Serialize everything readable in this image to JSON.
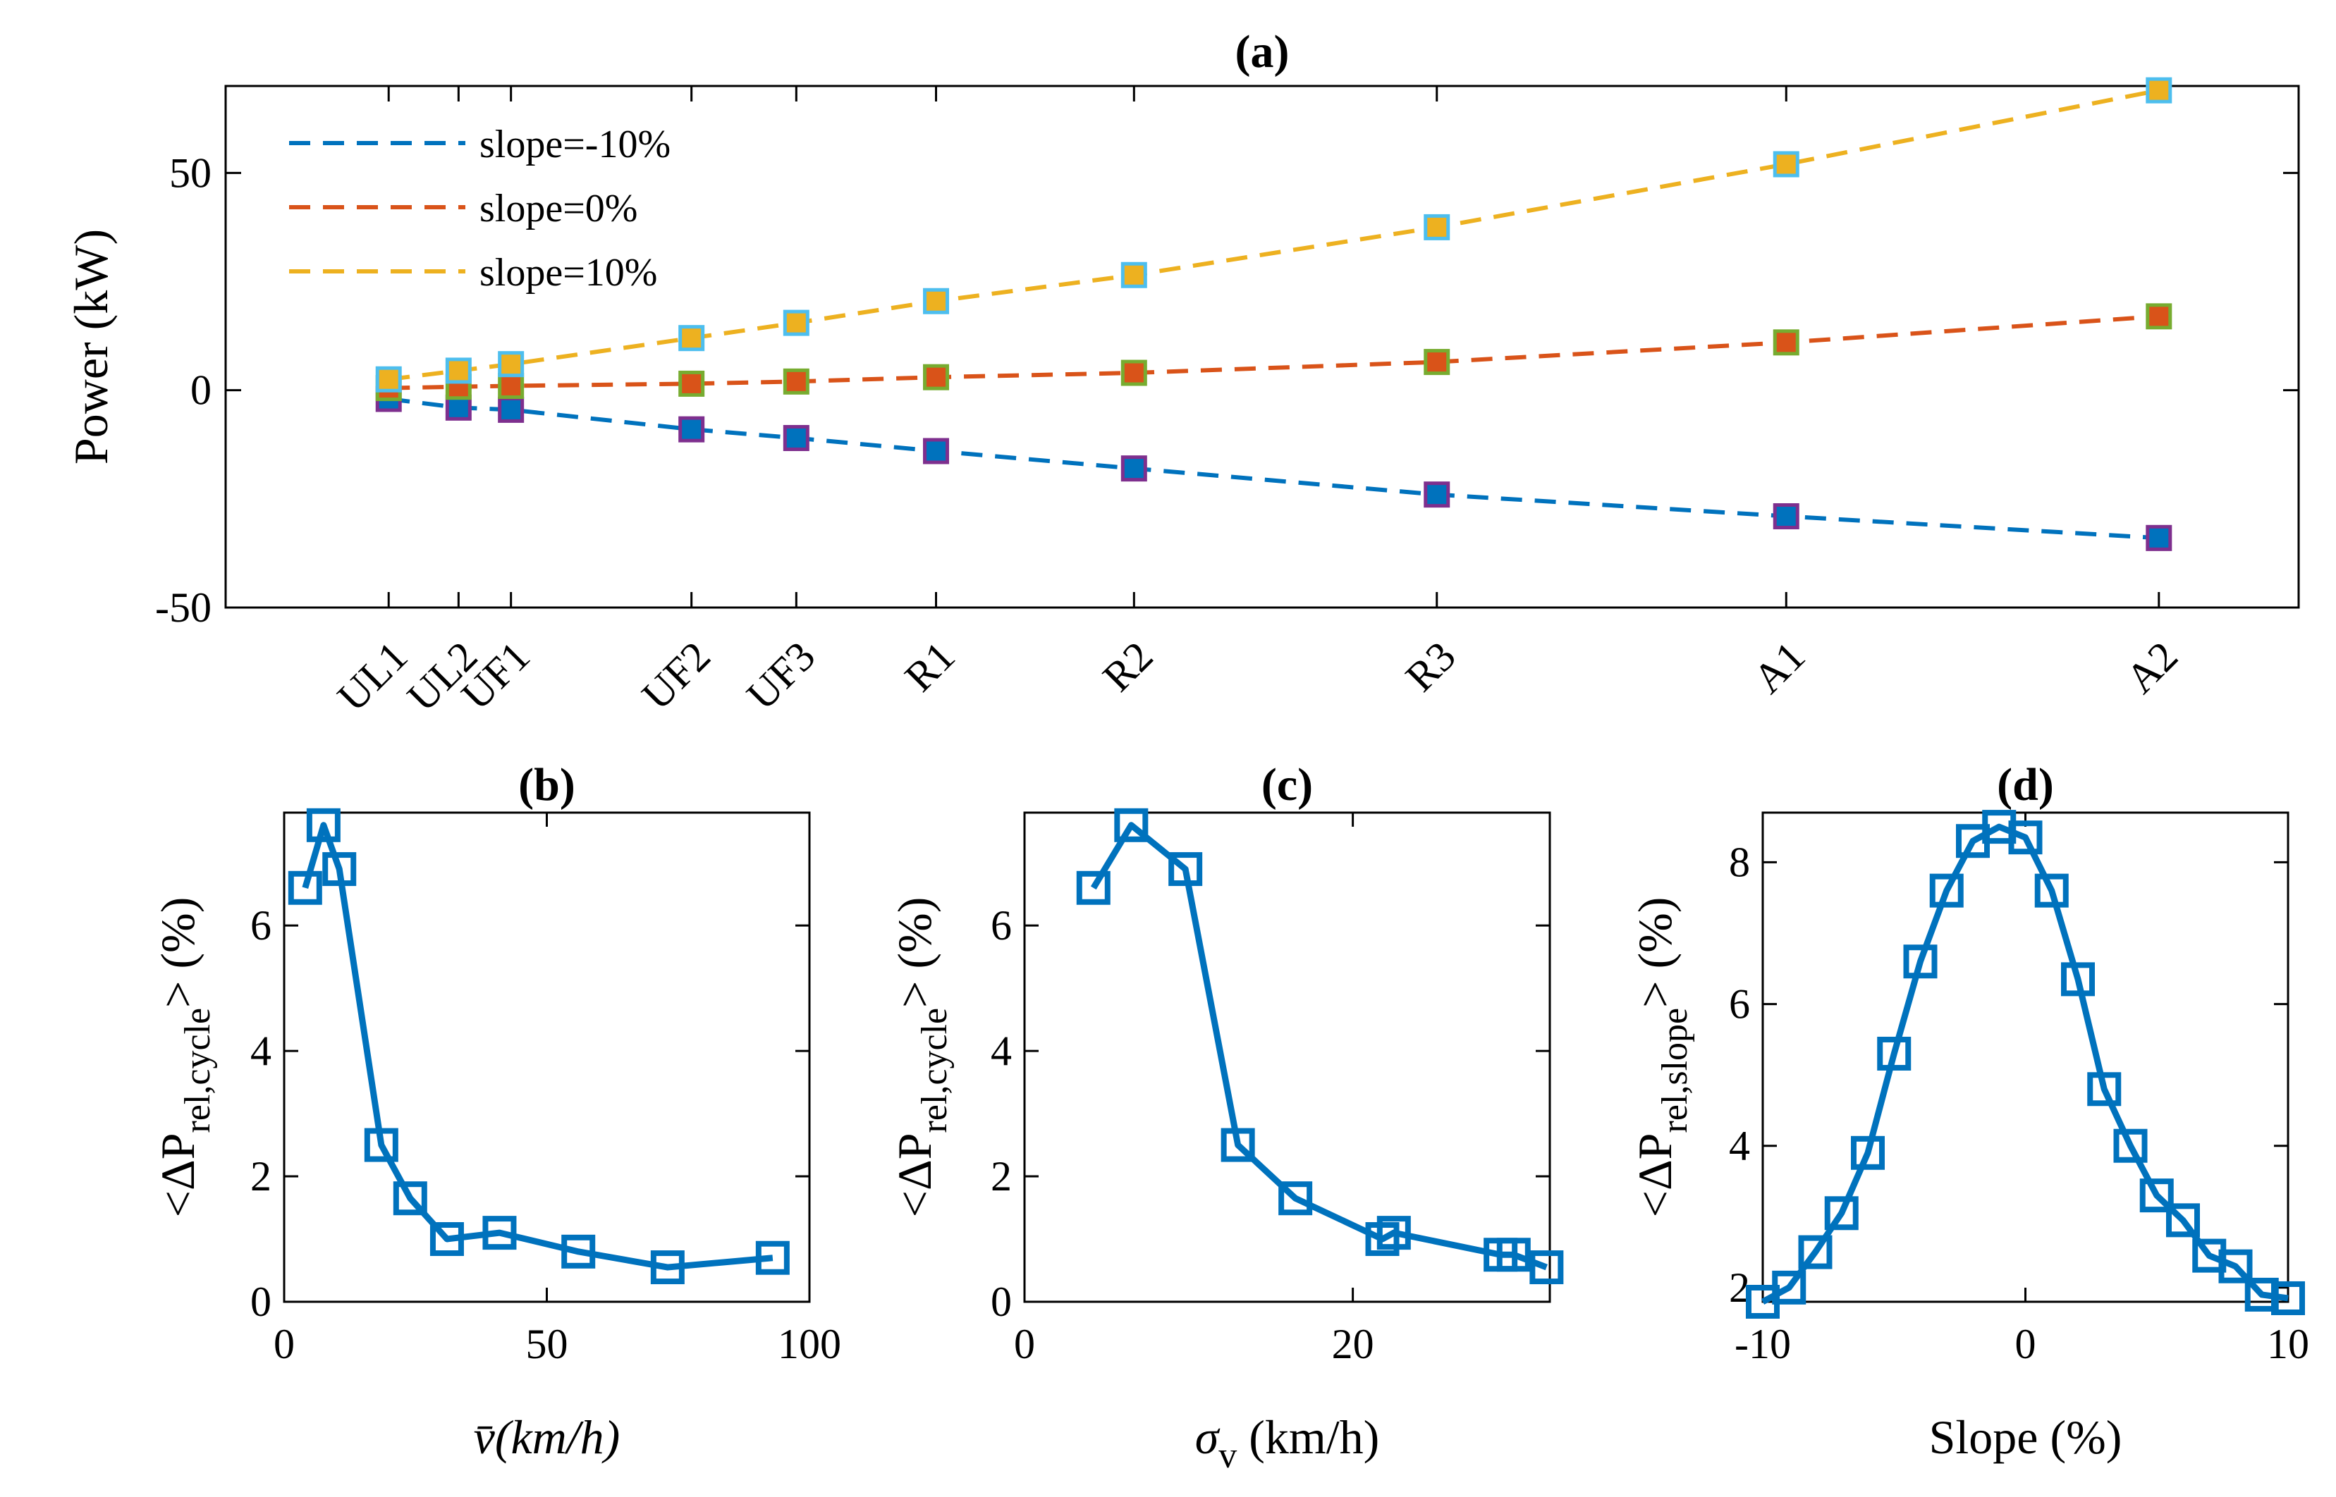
{
  "colors": {
    "blue": "#0072BD",
    "orange": "#D95319",
    "yellow": "#EDB120",
    "purple": "#7E2F8E",
    "green": "#77AC30",
    "cyan": "#4DBEEE"
  },
  "chart_data": [
    {
      "id": "a",
      "type": "line",
      "title": "(a)",
      "xlabel": "",
      "ylabel": "Power (kW)",
      "categories": [
        "UL1",
        "UL2",
        "UF1",
        "UF2",
        "UF3",
        "R1",
        "R2",
        "R3",
        "A1",
        "A2"
      ],
      "x": [
        14,
        20,
        24.5,
        40,
        49,
        61,
        78,
        104,
        134,
        166
      ],
      "xlim": [
        0,
        178
      ],
      "ylim": [
        -50,
        70
      ],
      "yticks": [
        -50,
        0,
        50
      ],
      "ytick_labels": [
        "-50",
        "0",
        "50"
      ],
      "grid": false,
      "legend_position": "top-left",
      "series": [
        {
          "name": "slope=-10%",
          "color": "#0072BD",
          "marker_edge": "#7E2F8E",
          "values": [
            -2,
            -4,
            -4.5,
            -9,
            -11,
            -14,
            -18,
            -24,
            -29,
            -34
          ]
        },
        {
          "name": "slope=0%",
          "color": "#D95319",
          "marker_edge": "#77AC30",
          "values": [
            0.5,
            0.8,
            1,
            1.5,
            2,
            3,
            4,
            6.5,
            11,
            17
          ]
        },
        {
          "name": "slope=10%",
          "color": "#EDB120",
          "marker_edge": "#4DBEEE",
          "values": [
            2.5,
            4.5,
            6,
            12,
            15.5,
            20.5,
            26.5,
            37.5,
            52,
            69
          ]
        }
      ]
    },
    {
      "id": "b",
      "type": "line",
      "title": "(b)",
      "xlabel": "v̄(km/h)",
      "ylabel": "<ΔP_rel,cycle> (%)",
      "ylabel_main": "<ΔP",
      "ylabel_sub": "rel,cycle",
      "ylabel_tail": "> (%)",
      "xlim": [
        0,
        100
      ],
      "ylim": [
        0,
        7.8
      ],
      "xticks": [
        0,
        50,
        100
      ],
      "xtick_labels": [
        "0",
        "50",
        "100"
      ],
      "yticks": [
        0,
        2,
        4,
        6
      ],
      "ytick_labels": [
        "0",
        "2",
        "4",
        "6"
      ],
      "x": [
        4,
        7.5,
        10.5,
        18.5,
        24,
        31,
        41,
        56,
        73,
        93
      ],
      "values": [
        6.6,
        7.6,
        6.9,
        2.5,
        1.65,
        1.0,
        1.1,
        0.8,
        0.55,
        0.7
      ]
    },
    {
      "id": "c",
      "type": "line",
      "title": "(c)",
      "xlabel": "σ_v (km/h)",
      "xlabel_main": "σ",
      "xlabel_sub": "v",
      "xlabel_tail": " (km/h)",
      "ylabel": "<ΔP_rel,cycle> (%)",
      "ylabel_main": "<ΔP",
      "ylabel_sub": "rel,cycle",
      "ylabel_tail": "> (%)",
      "xlim": [
        0,
        32
      ],
      "ylim": [
        0,
        7.8
      ],
      "xticks": [
        0,
        20
      ],
      "xtick_labels": [
        "0",
        "20"
      ],
      "yticks": [
        0,
        2,
        4,
        6
      ],
      "ytick_labels": [
        "0",
        "2",
        "4",
        "6"
      ],
      "x": [
        4.2,
        6.5,
        9.8,
        13,
        16.5,
        21.8,
        22.5,
        29,
        29.8,
        31.8
      ],
      "values": [
        6.6,
        7.6,
        6.9,
        2.5,
        1.65,
        1.0,
        1.1,
        0.75,
        0.75,
        0.55
      ]
    },
    {
      "id": "d",
      "type": "line",
      "title": "(d)",
      "xlabel": "Slope (%)",
      "ylabel": "<ΔP_rel,slope> (%)",
      "ylabel_main": "<ΔP",
      "ylabel_sub": "rel,slope",
      "ylabel_tail": "> (%)",
      "xlim": [
        -10,
        10
      ],
      "ylim": [
        1.8,
        8.7
      ],
      "xticks": [
        -10,
        0,
        10
      ],
      "xtick_labels": [
        "-10",
        "0",
        "10"
      ],
      "yticks": [
        2,
        4,
        6,
        8
      ],
      "ytick_labels": [
        "2",
        "4",
        "6",
        "8"
      ],
      "x": [
        -10,
        -9,
        -8,
        -7,
        -6,
        -5,
        -4,
        -3,
        -2,
        -1,
        0,
        1,
        2,
        3,
        4,
        5,
        6,
        7,
        8,
        9,
        10
      ],
      "values": [
        1.8,
        2.0,
        2.5,
        3.05,
        3.9,
        5.3,
        6.6,
        7.6,
        8.3,
        8.5,
        8.35,
        7.6,
        6.35,
        4.8,
        4.0,
        3.3,
        2.95,
        2.45,
        2.3,
        1.9,
        1.85
      ]
    }
  ]
}
